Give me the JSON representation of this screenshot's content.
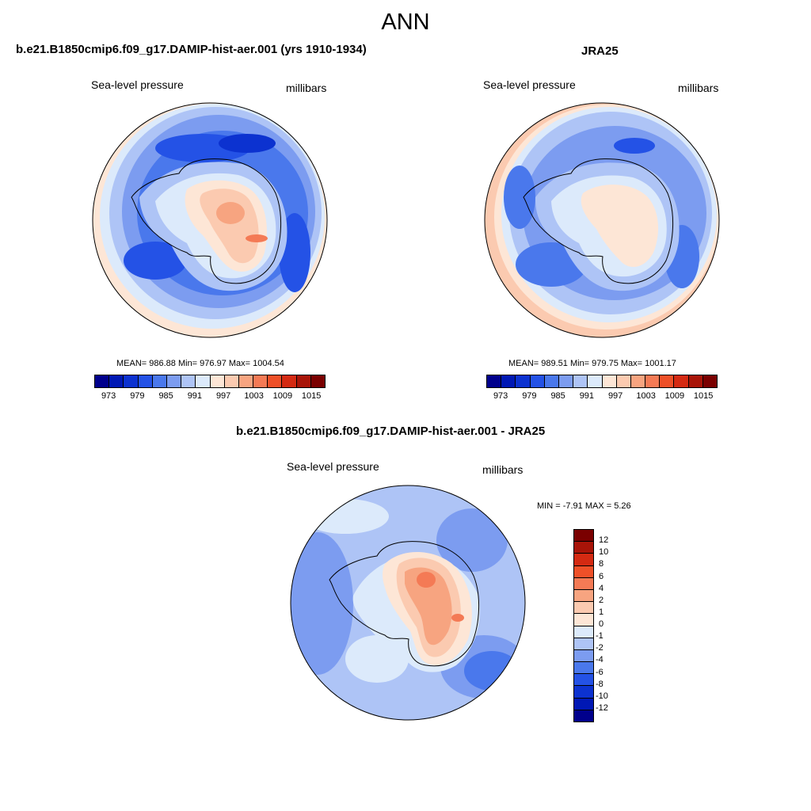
{
  "title": "ANN",
  "panels": [
    {
      "title": "b.e21.B1850cmip6.f09_g17.DAMIP-hist-aer.001 (yrs 1910-1934)",
      "variable": "Sea-level pressure",
      "units": "millibars",
      "stats": {
        "mean": "986.88",
        "min": "976.97",
        "max": "1004.54",
        "text": "MEAN= 986.88  Min= 976.97  Max= 1004.54"
      }
    },
    {
      "title": "JRA25",
      "variable": "Sea-level pressure",
      "units": "millibars",
      "stats": {
        "mean": "989.51",
        "min": "979.75",
        "max": "1001.17",
        "text": "MEAN= 989.51  Min= 979.75  Max= 1001.17"
      }
    },
    {
      "title": "b.e21.B1850cmip6.f09_g17.DAMIP-hist-aer.001 - JRA25",
      "variable": "Sea-level pressure",
      "units": "millibars",
      "stats": {
        "min": "-7.91",
        "max": "5.26",
        "text": "MIN =  -7.91 MAX =   5.26"
      }
    }
  ],
  "colorbar_main": {
    "colors": [
      "#00008c",
      "#0018b4",
      "#0c32d0",
      "#2452e6",
      "#4a78ec",
      "#7c9cf0",
      "#aec4f6",
      "#dceafb",
      "#fde6d6",
      "#fbcab0",
      "#f7a480",
      "#f47a55",
      "#ee5028",
      "#d42a12",
      "#a81408",
      "#7a0000"
    ],
    "labels": [
      "973",
      "979",
      "985",
      "991",
      "997",
      "1003",
      "1009",
      "1015"
    ]
  },
  "colorbar_diff": {
    "colors": [
      "#7a0000",
      "#a81408",
      "#d42a12",
      "#ee5028",
      "#f47a55",
      "#f7a480",
      "#fbcab0",
      "#fde6d6",
      "#dceafb",
      "#aec4f6",
      "#7c9cf0",
      "#4a78ec",
      "#2452e6",
      "#0c32d0",
      "#0018b4",
      "#00008c"
    ],
    "labels": [
      "12",
      "10",
      "8",
      "6",
      "4",
      "2",
      "1",
      "0",
      "-1",
      "-2",
      "-4",
      "-6",
      "-8",
      "-10",
      "-12"
    ]
  }
}
